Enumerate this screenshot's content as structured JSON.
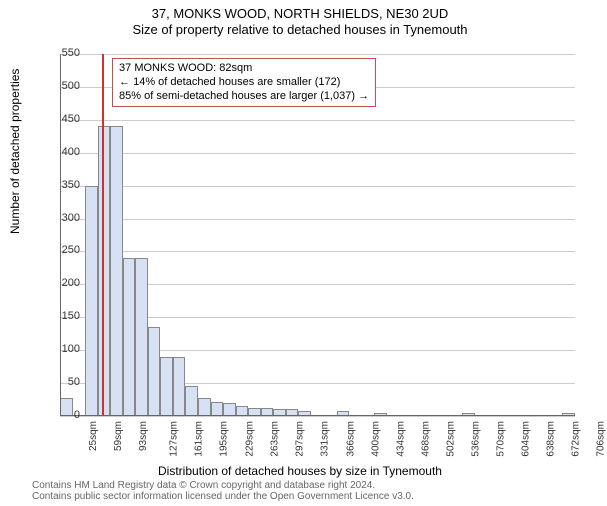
{
  "title": "37, MONKS WOOD, NORTH SHIELDS, NE30 2UD",
  "subtitle": "Size of property relative to detached houses in Tynemouth",
  "y_label": "Number of detached properties",
  "x_label": "Distribution of detached houses by size in Tynemouth",
  "footer_line1": "Contains HM Land Registry data © Crown copyright and database right 2024.",
  "footer_line2": "Contains public sector information licensed under the Open Government Licence v3.0.",
  "chart": {
    "type": "histogram",
    "background_color": "#ffffff",
    "grid_color": "#cccccc",
    "axis_color": "#666666",
    "bar_fill": "#d6e2f3",
    "bar_border": "#888888",
    "ref_line_color": "#d03030",
    "info_border": "#c05050",
    "ylim": [
      0,
      550
    ],
    "ytick_step": 50,
    "yticks": [
      0,
      50,
      100,
      150,
      200,
      250,
      300,
      350,
      400,
      450,
      500,
      550
    ],
    "xlim": [
      25,
      723
    ],
    "xtick_step": 34,
    "xticks": [
      25,
      59,
      93,
      127,
      161,
      195,
      229,
      263,
      297,
      331,
      366,
      400,
      434,
      468,
      502,
      536,
      570,
      604,
      638,
      672,
      706
    ],
    "xtick_suffix": "sqm",
    "ref_value": 82,
    "bars": [
      {
        "x": 25,
        "v": 28
      },
      {
        "x": 59,
        "v": 350
      },
      {
        "x": 76,
        "v": 440
      },
      {
        "x": 93,
        "v": 440
      },
      {
        "x": 110,
        "v": 240
      },
      {
        "x": 127,
        "v": 240
      },
      {
        "x": 144,
        "v": 135
      },
      {
        "x": 161,
        "v": 90
      },
      {
        "x": 178,
        "v": 90
      },
      {
        "x": 195,
        "v": 45
      },
      {
        "x": 212,
        "v": 28
      },
      {
        "x": 229,
        "v": 22
      },
      {
        "x": 246,
        "v": 20
      },
      {
        "x": 263,
        "v": 15
      },
      {
        "x": 280,
        "v": 12
      },
      {
        "x": 297,
        "v": 12
      },
      {
        "x": 314,
        "v": 10
      },
      {
        "x": 331,
        "v": 10
      },
      {
        "x": 348,
        "v": 8
      },
      {
        "x": 400,
        "v": 8
      },
      {
        "x": 451,
        "v": 5
      },
      {
        "x": 570,
        "v": 5
      },
      {
        "x": 706,
        "v": 5
      }
    ],
    "bar_width_units": 17
  },
  "info": {
    "line1": "37 MONKS WOOD: 82sqm",
    "line2": "← 14% of detached houses are smaller (172)",
    "line3": "85% of semi-detached houses are larger (1,037) →"
  }
}
